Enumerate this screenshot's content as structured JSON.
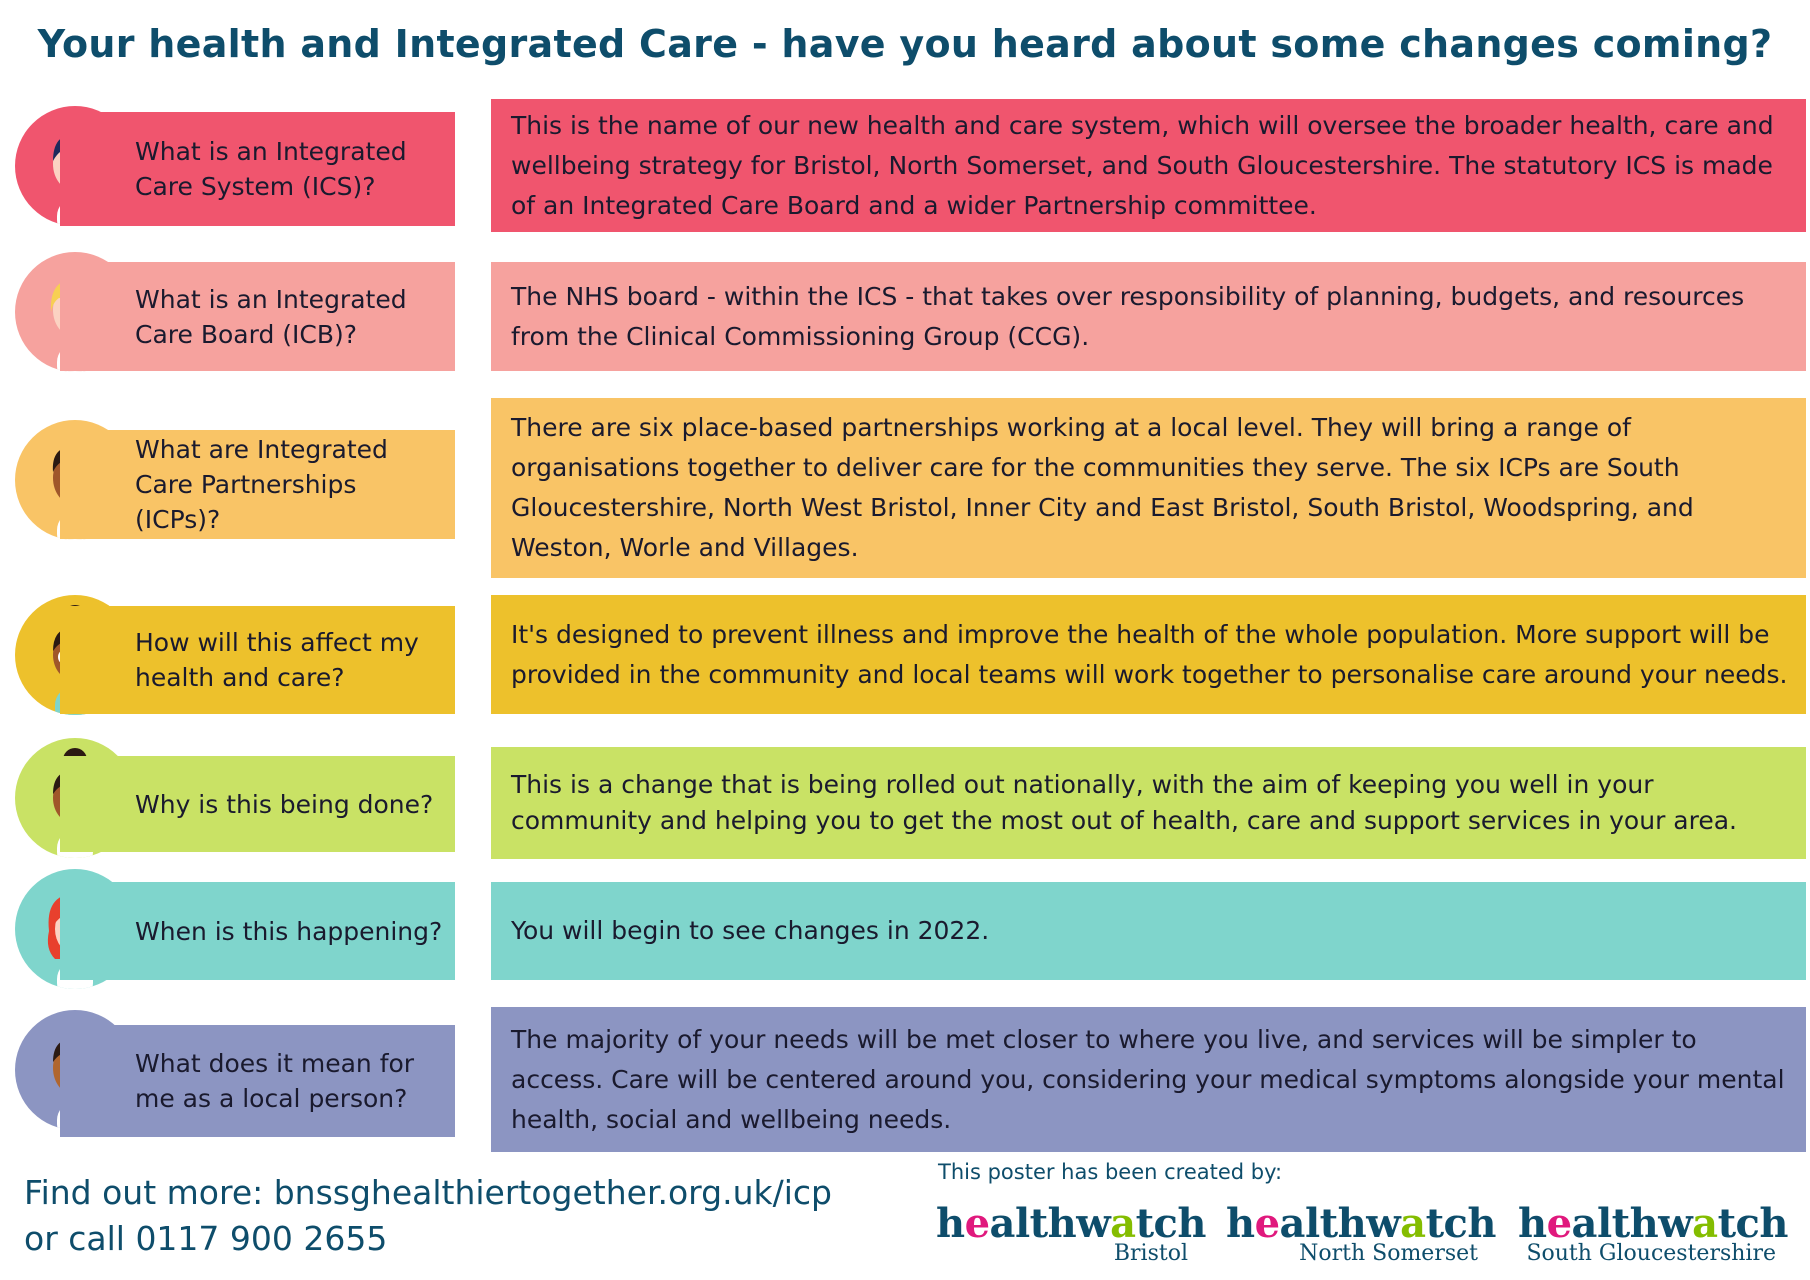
{
  "title": "Your health and Integrated Care - have you heard about some changes coming?",
  "rows": [
    {
      "question": "What is an Integrated Care System (ICS)?",
      "answer": "This is the name of our new health and care system, which will oversee the broader health, care and wellbeing strategy for Bristol, North Somerset, and South Gloucestershire. The statutory ICS is made of an Integrated Care Board and a wider Partnership committee.",
      "color": "#f0556e"
    },
    {
      "question": "What is an Integrated Care Board (ICB)?",
      "answer": "The NHS board - within the ICS - that takes over responsibility of planning, budgets, and resources from the Clinical Commissioning Group (CCG).",
      "color": "#f6a29e"
    },
    {
      "question": "What are Integrated Care Partnerships (ICPs)?",
      "answer": "There are six place-based partnerships working at a local level. They will bring a range of organisations together to deliver care for the communities they serve. The six ICPs are South Gloucestershire, North West Bristol, Inner City and East Bristol, South Bristol, Woodspring, and Weston, Worle and Villages.",
      "color": "#f9c466"
    },
    {
      "question": "How will this affect my health and care?",
      "answer": "It's designed to prevent illness and improve the health of the whole population. More support will be provided in the community and local teams will work together to personalise care around your needs.",
      "color": "#edc12c"
    },
    {
      "question": "Why is this being done?",
      "answer": "This is a change that is being rolled out nationally, with the aim of keeping you well in your community and helping you to get the most out of health, care and support services in your area.",
      "color": "#c9e265"
    },
    {
      "question": "When is this happening?",
      "answer": "You will begin to see changes in 2022.",
      "color": "#7fd5cc"
    },
    {
      "question": "What does it mean for me as a local person?",
      "answer": "The majority of your needs will be met closer to where you live, and services will be simpler to access. Care will be centered around you, considering your medical symptoms alongside your mental health, social and wellbeing needs.",
      "color": "#8c95c2"
    }
  ],
  "footer": {
    "find_out_more": "Find out more: bnssghealthiertogether.org.uk/icp",
    "call": "or call 0117 900 2655",
    "created_by": "This poster has been created by:"
  },
  "logos": [
    {
      "word_h": "h",
      "word_e": "e",
      "word_alth": "althw",
      "word_a": "a",
      "word_tch": "tch",
      "place": "Bristol"
    },
    {
      "word_h": "h",
      "word_e": "e",
      "word_alth": "althw",
      "word_a": "a",
      "word_tch": "tch",
      "place": "North Somerset"
    },
    {
      "word_h": "h",
      "word_e": "e",
      "word_alth": "althw",
      "word_a": "a",
      "word_tch": "tch",
      "place": "South Gloucestershire"
    }
  ],
  "avatar_icons": [
    "person-short-hair-icon",
    "person-blonde-icon",
    "person-curly-hair-icon",
    "person-bun-glasses-icon",
    "person-bun-icon",
    "person-red-hair-icon",
    "person-short-hair-dark-icon"
  ]
}
